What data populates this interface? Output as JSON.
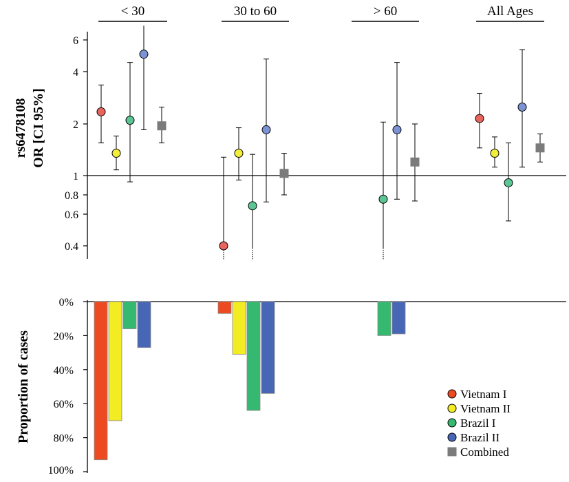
{
  "colors": {
    "Vietnam I": "#ee4a22",
    "Vietnam II": "#f3ec22",
    "Brazil I": "#35b870",
    "Brazil II": "#4766b5",
    "Combined": "#7b7b7b"
  },
  "marker_colors": {
    "Vietnam I": "#e8645c",
    "Vietnam II": "#f2ef3a",
    "Brazil I": "#5cc594",
    "Brazil II": "#7b93d2",
    "Combined": "#7b7b7b"
  },
  "chart_data": [
    {
      "type": "scatter",
      "title": "",
      "ylabel_lines": [
        "rs6478108",
        "OR [CI 95%]"
      ],
      "yscale": "log",
      "ylim": [
        0.33,
        7.2
      ],
      "yticks": [
        0.4,
        0.6,
        0.8,
        1,
        2,
        4,
        6
      ],
      "ytick_labels": [
        "0.4",
        "0.6",
        "0.8",
        "1",
        "2",
        "4",
        "6"
      ],
      "reference_line": 1,
      "groups": [
        "< 30",
        "30 to 60",
        "> 60",
        "All Ages"
      ],
      "series": [
        {
          "name": "Vietnam I",
          "marker": "circle",
          "values": [
            2.35,
            0.4,
            null,
            2.15
          ],
          "ci_low": [
            1.55,
            null,
            null,
            1.45
          ],
          "ci_high": [
            3.35,
            1.28,
            null,
            3.0
          ],
          "extends_below_axis": [
            false,
            true,
            false,
            false
          ]
        },
        {
          "name": "Vietnam II",
          "marker": "circle",
          "values": [
            1.35,
            1.35,
            null,
            1.35
          ],
          "ci_low": [
            1.08,
            0.95,
            null,
            1.12
          ],
          "ci_high": [
            1.7,
            1.9,
            null,
            1.68
          ],
          "extends_below_axis": [
            false,
            false,
            false,
            false
          ]
        },
        {
          "name": "Brazil I",
          "marker": "circle",
          "values": [
            2.1,
            0.68,
            0.75,
            0.92
          ],
          "ci_low": [
            0.93,
            null,
            null,
            0.55
          ],
          "ci_high": [
            4.5,
            1.33,
            2.05,
            1.55
          ],
          "extends_below_axis": [
            false,
            true,
            true,
            false
          ]
        },
        {
          "name": "Brazil II",
          "marker": "circle",
          "values": [
            5.0,
            1.85,
            1.85,
            2.5
          ],
          "ci_low": [
            1.85,
            0.72,
            0.75,
            1.12
          ],
          "ci_high": [
            7.2,
            4.7,
            4.5,
            5.3
          ],
          "extends_below_axis": [
            false,
            false,
            false,
            false
          ]
        },
        {
          "name": "Combined",
          "marker": "square",
          "values": [
            1.95,
            1.03,
            1.2,
            1.45
          ],
          "ci_low": [
            1.55,
            0.8,
            0.73,
            1.2
          ],
          "ci_high": [
            2.5,
            1.35,
            2.0,
            1.75
          ],
          "extends_below_axis": [
            false,
            false,
            false,
            false
          ]
        }
      ]
    },
    {
      "type": "bar",
      "title": "",
      "ylabel": "Proportion of cases",
      "ylim": [
        0,
        100
      ],
      "y_inverted": true,
      "yticks": [
        0,
        20,
        40,
        60,
        80,
        100
      ],
      "ytick_labels": [
        "0%",
        "20%",
        "40%",
        "60%",
        "80%",
        "100%"
      ],
      "categories": [
        "< 30",
        "30 to 60",
        "> 60",
        "All Ages"
      ],
      "series": [
        {
          "name": "Vietnam I",
          "values": [
            93,
            7,
            0,
            null
          ]
        },
        {
          "name": "Vietnam II",
          "values": [
            70,
            31,
            0,
            null
          ]
        },
        {
          "name": "Brazil I",
          "values": [
            16,
            64,
            20,
            null
          ]
        },
        {
          "name": "Brazil II",
          "values": [
            27,
            54,
            19,
            null
          ]
        }
      ],
      "legend": {
        "position": "bottom-right",
        "entries": [
          {
            "name": "Vietnam I",
            "marker": "circle"
          },
          {
            "name": "Vietnam II",
            "marker": "circle"
          },
          {
            "name": "Brazil I",
            "marker": "circle"
          },
          {
            "name": "Brazil II",
            "marker": "circle"
          },
          {
            "name": "Combined",
            "marker": "square"
          }
        ]
      }
    }
  ]
}
